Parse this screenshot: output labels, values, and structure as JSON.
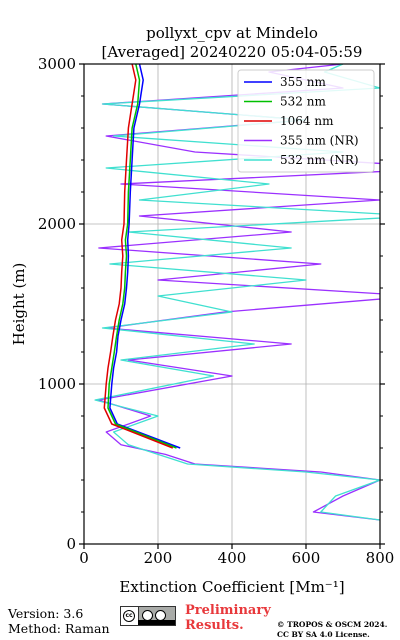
{
  "chart_data": {
    "type": "line",
    "title": "pollyxt_cpv at Mindelo",
    "subtitle": "[Averaged] 20240220 05:04-05:59",
    "xlabel": "Extinction Coefficient [Mm⁻¹]",
    "ylabel": "Height (m)",
    "xlim": [
      0,
      800
    ],
    "ylim": [
      0,
      3000
    ],
    "xticks": [
      "0",
      "200",
      "400",
      "600",
      "800"
    ],
    "yticks": [
      "0",
      "1000",
      "2000",
      "3000"
    ],
    "grid": true,
    "legend_position": "top-right",
    "series": [
      {
        "name": "355 nm",
        "color": "#0000ff",
        "x": [
          260,
          90,
          70,
          75,
          80,
          88,
          92,
          100,
          110,
          115,
          118,
          120,
          118,
          122,
          125,
          130,
          135,
          150,
          160,
          150
        ],
        "y": [
          600,
          750,
          850,
          1000,
          1100,
          1200,
          1300,
          1400,
          1500,
          1600,
          1700,
          1800,
          1900,
          2000,
          2200,
          2400,
          2600,
          2750,
          2900,
          3000
        ]
      },
      {
        "name": "532 nm",
        "color": "#00c000",
        "x": [
          250,
          85,
          65,
          68,
          75,
          82,
          88,
          95,
          105,
          110,
          112,
          115,
          112,
          118,
          120,
          125,
          130,
          145,
          150,
          140
        ],
        "y": [
          600,
          750,
          850,
          1000,
          1100,
          1200,
          1300,
          1400,
          1500,
          1600,
          1700,
          1800,
          1900,
          2000,
          2200,
          2400,
          2600,
          2750,
          2900,
          3000
        ]
      },
      {
        "name": "1064 nm",
        "color": "#e00000",
        "x": [
          240,
          75,
          55,
          60,
          65,
          72,
          78,
          85,
          95,
          100,
          102,
          105,
          102,
          108,
          110,
          115,
          120,
          130,
          140,
          130
        ],
        "y": [
          600,
          750,
          850,
          1000,
          1100,
          1200,
          1300,
          1400,
          1500,
          1600,
          1700,
          1800,
          1900,
          2000,
          2200,
          2400,
          2600,
          2750,
          2900,
          3000
        ]
      },
      {
        "name": "355 nm (NR)",
        "color": "#9b30ff",
        "x": [
          800,
          620,
          700,
          800,
          640,
          300,
          220,
          100,
          60,
          180,
          40,
          400,
          120,
          560,
          60,
          380,
          900,
          200,
          640,
          40,
          560,
          150,
          800,
          100,
          1000,
          300,
          60,
          600,
          50,
          700,
          500,
          700
        ],
        "y": [
          150,
          200,
          300,
          400,
          450,
          500,
          560,
          620,
          700,
          800,
          900,
          1050,
          1150,
          1250,
          1350,
          1450,
          1550,
          1650,
          1750,
          1850,
          1950,
          2050,
          2150,
          2250,
          2350,
          2450,
          2550,
          2650,
          2750,
          2850,
          2950,
          3000
        ]
      },
      {
        "name": "532 nm (NR)",
        "color": "#40e0d0",
        "x": [
          800,
          640,
          680,
          800,
          600,
          280,
          200,
          120,
          80,
          200,
          30,
          350,
          100,
          460,
          50,
          400,
          200,
          600,
          70,
          560,
          120,
          900,
          150,
          500,
          60,
          700,
          80,
          600,
          50,
          800,
          650,
          700
        ],
        "y": [
          150,
          200,
          300,
          400,
          450,
          500,
          560,
          620,
          700,
          800,
          900,
          1050,
          1150,
          1250,
          1350,
          1450,
          1550,
          1650,
          1750,
          1850,
          1950,
          2050,
          2150,
          2250,
          2350,
          2450,
          2550,
          2650,
          2750,
          2850,
          2950,
          3000
        ]
      }
    ]
  },
  "footer": {
    "version": "Version: 3.6",
    "method": "Method: Raman",
    "prelim_line1": "Preliminary",
    "prelim_line2": "Results.",
    "copyright_line1": "© TROPOS & OSCM 2024.",
    "copyright_line2": "CC BY SA 4.0 License."
  }
}
